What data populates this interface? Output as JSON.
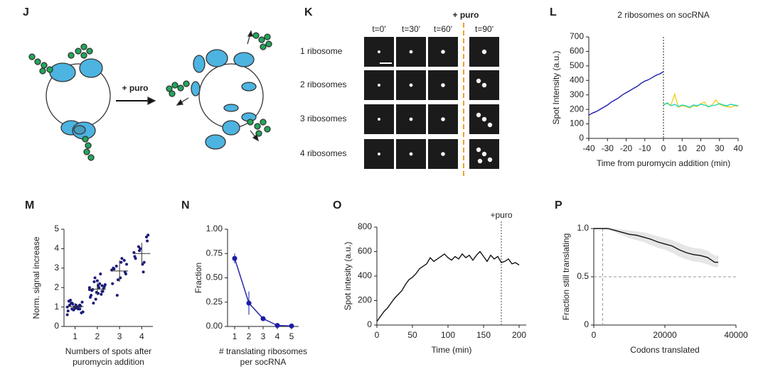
{
  "panel_labels": [
    "J",
    "K",
    "L",
    "M",
    "N",
    "O",
    "P"
  ],
  "diagram_j": {
    "label": "+ puro"
  },
  "microscopy_k": {
    "header": "+ puro",
    "times": [
      "t=0'",
      "t=30'",
      "t=60'",
      "t=90'"
    ],
    "rows": [
      "1 ribosome",
      "2 ribosomes",
      "3 ribosomes",
      "4 ribosomes"
    ]
  },
  "chart_data": [
    {
      "type": "line",
      "title": "2 ribosomes on socRNA",
      "xlabel": "Time from puromycin addition (min)",
      "ylabel": "Spot Intensity (a.u.)",
      "xlim": [
        -40,
        40
      ],
      "ylim": [
        0,
        700
      ],
      "xticks": [
        -40,
        -30,
        -20,
        -10,
        0,
        10,
        20,
        30,
        40
      ],
      "yticks": [
        0,
        100,
        200,
        300,
        400,
        500,
        600,
        700
      ],
      "vline": 0,
      "x": [
        -40,
        -38,
        -36,
        -34,
        -32,
        -30,
        -28,
        -26,
        -24,
        -22,
        -20,
        -18,
        -16,
        -14,
        -12,
        -10,
        -8,
        -6,
        -4,
        -2,
        0,
        2,
        4,
        6,
        8,
        10,
        12,
        14,
        16,
        18,
        20,
        22,
        24,
        26,
        28,
        30,
        32,
        34,
        36,
        38,
        40
      ],
      "series": [
        {
          "color": "#1c1ca8",
          "values": [
            160,
            175,
            185,
            200,
            215,
            230,
            250,
            265,
            280,
            300,
            315,
            330,
            345,
            360,
            380,
            395,
            405,
            420,
            435,
            445,
            460,
            null,
            null,
            null,
            null,
            null,
            null,
            null,
            null,
            null,
            null,
            null,
            null,
            null,
            null,
            null,
            null,
            null,
            null,
            null,
            null
          ]
        },
        {
          "color": "#f0d21c",
          "values": [
            null,
            null,
            null,
            null,
            null,
            null,
            null,
            null,
            null,
            null,
            null,
            null,
            null,
            null,
            null,
            null,
            null,
            null,
            null,
            null,
            235,
            240,
            230,
            305,
            215,
            225,
            220,
            210,
            225,
            220,
            240,
            250,
            215,
            230,
            265,
            235,
            225,
            220,
            215,
            225,
            220
          ]
        },
        {
          "color": "#1fd6c0",
          "values": [
            null,
            null,
            null,
            null,
            null,
            null,
            null,
            null,
            null,
            null,
            null,
            null,
            null,
            null,
            null,
            null,
            null,
            null,
            null,
            null,
            230,
            245,
            225,
            235,
            220,
            230,
            225,
            215,
            230,
            225,
            235,
            230,
            220,
            225,
            230,
            240,
            230,
            225,
            235,
            230,
            225
          ]
        }
      ]
    },
    {
      "type": "strip",
      "xlabel": [
        "Numbers of spots after",
        "puromycin addition"
      ],
      "ylabel": "Norm. signal increase",
      "categories": [
        "1",
        "2",
        "3",
        "4"
      ],
      "ylim": [
        0,
        5
      ],
      "yticks": [
        0,
        1,
        2,
        3,
        4,
        5
      ],
      "color": "#1a1a7a",
      "values": [
        [
          1.0,
          0.9,
          1.1,
          1.2,
          0.8,
          1.05,
          0.95,
          1.15,
          1.3,
          0.7,
          1.0,
          0.85,
          1.1,
          1.25,
          0.9,
          1.0,
          1.35,
          0.75,
          1.05,
          0.95,
          1.2,
          0.6,
          1.1,
          1.0,
          0.9
        ],
        [
          1.9,
          2.1,
          1.7,
          2.3,
          1.5,
          1.8,
          2.0,
          2.5,
          1.6,
          1.95,
          2.2,
          1.4,
          1.85,
          2.05,
          2.7,
          1.75,
          1.9,
          2.15,
          1.65,
          2.35,
          1.2,
          2.0,
          1.8,
          2.1
        ],
        [
          2.9,
          3.4,
          2.5,
          3.1,
          2.2,
          2.8,
          3.3,
          1.6,
          3.0,
          2.7,
          3.5,
          2.4,
          2.95,
          3.2
        ],
        [
          3.8,
          4.6,
          3.2,
          4.1,
          3.6,
          4.4,
          2.8,
          3.9,
          3.5,
          4.7,
          3.3,
          4.0
        ]
      ],
      "means": [
        1.02,
        1.92,
        2.85,
        3.75
      ],
      "sd": [
        0.18,
        0.32,
        0.55,
        0.55
      ]
    },
    {
      "type": "line",
      "xlabel": [
        "# translating ribosomes",
        "per socRNA"
      ],
      "ylabel": "Fraction",
      "xlim": [
        0.5,
        5.5
      ],
      "ylim": [
        0,
        1
      ],
      "xticks": [
        1,
        2,
        3,
        4,
        5
      ],
      "yticks": [
        {
          "value": 0,
          "label": "0.00"
        },
        {
          "value": 0.25,
          "label": "0.25"
        },
        {
          "value": 0.5,
          "label": "0.50"
        },
        {
          "value": 0.75,
          "label": "0.75"
        },
        {
          "value": 1,
          "label": "1.00"
        }
      ],
      "color": "#1c1ca8",
      "x": [
        1,
        2,
        3,
        4,
        5
      ],
      "values": [
        0.7,
        0.24,
        0.08,
        0.01,
        0.005
      ],
      "errors": [
        0.05,
        0.12,
        0.01,
        0.01,
        0.005
      ]
    },
    {
      "type": "line",
      "xlabel": "Time (min)",
      "ylabel": "Spot intesity (a.u.)",
      "xlim": [
        0,
        210
      ],
      "ylim": [
        0,
        800
      ],
      "xticks": [
        0,
        50,
        100,
        150,
        200
      ],
      "yticks": [
        0,
        200,
        400,
        600,
        800
      ],
      "annotation": {
        "text": "+puro",
        "x": 175
      },
      "color": "#111111",
      "x": [
        0,
        5,
        10,
        15,
        20,
        25,
        30,
        35,
        40,
        45,
        50,
        55,
        60,
        65,
        70,
        75,
        80,
        85,
        90,
        95,
        100,
        105,
        110,
        115,
        120,
        125,
        130,
        135,
        140,
        145,
        150,
        155,
        160,
        165,
        170,
        175,
        180,
        185,
        190,
        195,
        200
      ],
      "values": [
        30,
        70,
        110,
        140,
        180,
        220,
        250,
        280,
        330,
        370,
        390,
        420,
        460,
        480,
        500,
        550,
        520,
        540,
        560,
        580,
        550,
        530,
        560,
        540,
        580,
        550,
        570,
        530,
        570,
        600,
        560,
        520,
        570,
        540,
        560,
        510,
        520,
        540,
        500,
        510,
        490
      ]
    },
    {
      "type": "step",
      "xlabel": "Codons translated",
      "ylabel": "Fraction still translating",
      "xlim": [
        0,
        40000
      ],
      "ylim": [
        0,
        1
      ],
      "xticks": [
        0,
        20000,
        40000
      ],
      "yticks": [
        0,
        0.5,
        {
          "value": 1,
          "label": "1.0"
        }
      ],
      "hline": 0.5,
      "vline": 2500,
      "color": "#111111",
      "x": [
        0,
        4000,
        6000,
        8000,
        10000,
        12000,
        14000,
        16000,
        18000,
        20000,
        22000,
        24000,
        26000,
        28000,
        30000,
        32000,
        34000,
        35000
      ],
      "values": [
        1,
        1,
        0.98,
        0.96,
        0.94,
        0.93,
        0.91,
        0.89,
        0.86,
        0.84,
        0.82,
        0.78,
        0.75,
        0.73,
        0.72,
        0.7,
        0.65,
        0.65
      ],
      "lower": [
        1,
        0.99,
        0.96,
        0.93,
        0.9,
        0.88,
        0.86,
        0.83,
        0.8,
        0.78,
        0.75,
        0.71,
        0.68,
        0.66,
        0.65,
        0.63,
        0.6,
        0.6
      ],
      "upper": [
        1,
        1,
        1,
        0.99,
        0.98,
        0.97,
        0.96,
        0.94,
        0.92,
        0.9,
        0.88,
        0.85,
        0.82,
        0.8,
        0.79,
        0.77,
        0.72,
        0.72
      ]
    }
  ]
}
